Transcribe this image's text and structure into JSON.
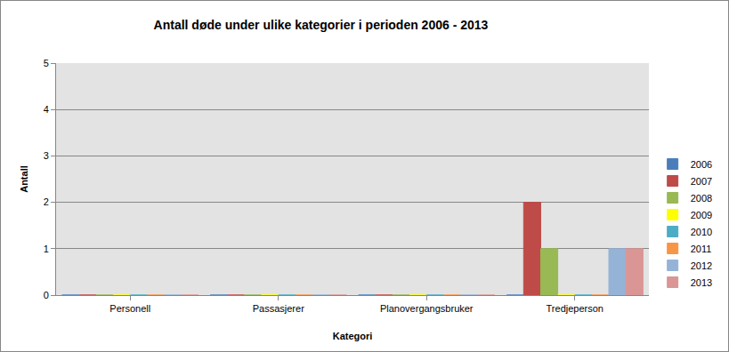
{
  "chart_data": {
    "type": "bar",
    "title": "Antall døde under ulike kategorier i perioden 2006 - 2013",
    "x_label": "Kategori",
    "y_label": "Antall",
    "categories": [
      "Personell",
      "Passasjerer",
      "Planovergangsbruker",
      "Tredjeperson"
    ],
    "series": [
      {
        "name": "2006",
        "color": "#4a7ebb",
        "values": [
          0,
          0,
          0,
          0
        ]
      },
      {
        "name": "2007",
        "color": "#be4b48",
        "values": [
          0,
          0,
          0,
          2
        ]
      },
      {
        "name": "2008",
        "color": "#98b954",
        "values": [
          0,
          0,
          0,
          1
        ]
      },
      {
        "name": "2009",
        "color": "#ffff00",
        "values": [
          0,
          0,
          0,
          0
        ]
      },
      {
        "name": "2010",
        "color": "#4bacc6",
        "values": [
          0,
          0,
          0,
          0
        ]
      },
      {
        "name": "2011",
        "color": "#f79646",
        "values": [
          0,
          0,
          0,
          0
        ]
      },
      {
        "name": "2012",
        "color": "#95b3d7",
        "values": [
          0,
          0,
          0,
          1
        ]
      },
      {
        "name": "2013",
        "color": "#d99694",
        "values": [
          0,
          0,
          0,
          1
        ]
      }
    ],
    "ylim": [
      0,
      5
    ],
    "yticks": [
      0,
      1,
      2,
      3,
      4,
      5
    ],
    "grid": true,
    "legend": "right"
  }
}
